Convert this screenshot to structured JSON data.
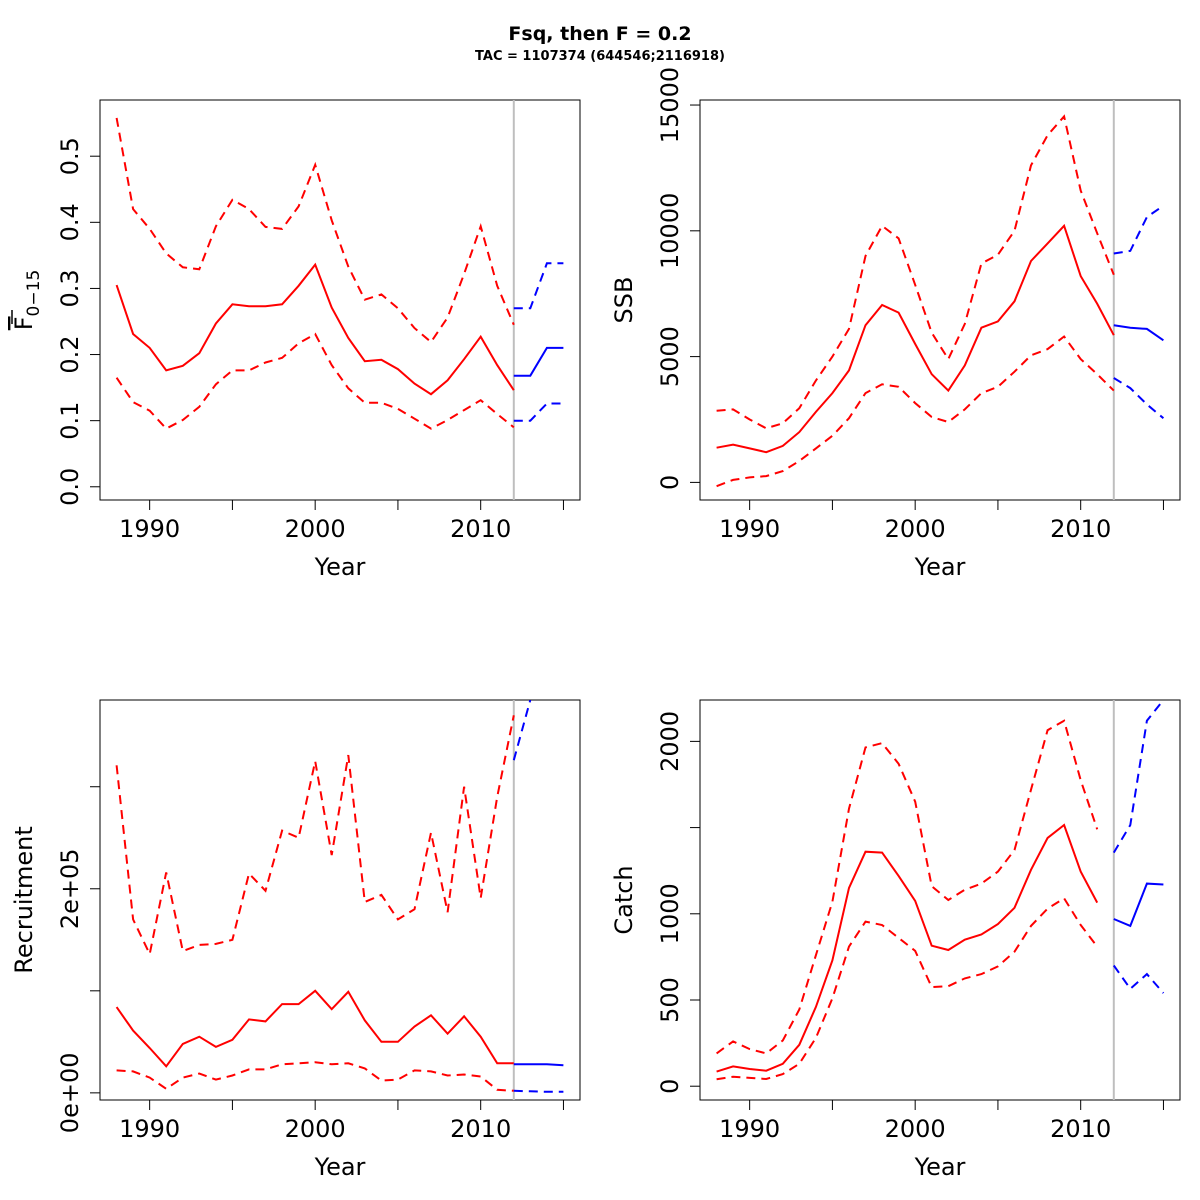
{
  "title": "Fsq, then F = 0.2",
  "subtitle": "TAC = 1107374 (644546;2116918)",
  "colors": {
    "historic": "#ff0000",
    "projection": "#0000ff",
    "divider": "#bebebe"
  },
  "chart_data": [
    {
      "type": "line",
      "id": "fbar",
      "xlabel": "Year",
      "ylabel_main": "F",
      "ylabel_sub": "0−15",
      "xlim": [
        1987,
        2016
      ],
      "ylim": [
        -0.02,
        0.585
      ],
      "xticks": [
        1990,
        2000,
        2010
      ],
      "xtick_labels": [
        "1990",
        "2000",
        "2010"
      ],
      "xminor": [
        1995,
        2005,
        2015
      ],
      "yticks": [
        0.0,
        0.1,
        0.2,
        0.3,
        0.4,
        0.5
      ],
      "ytick_labels": [
        "0.0",
        "0.1",
        "0.2",
        "0.3",
        "0.4",
        "0.5"
      ],
      "divider_year": 2012,
      "series": [
        {
          "role": "historic",
          "style": "solid",
          "x": [
            1988,
            1989,
            1990,
            1991,
            1992,
            1993,
            1994,
            1995,
            1996,
            1997,
            1998,
            1999,
            2000,
            2001,
            2002,
            2003,
            2004,
            2005,
            2006,
            2007,
            2008,
            2009,
            2010,
            2011,
            2012
          ],
          "y": [
            0.305,
            0.231,
            0.21,
            0.176,
            0.183,
            0.202,
            0.247,
            0.276,
            0.273,
            0.273,
            0.276,
            0.304,
            0.336,
            0.271,
            0.225,
            0.19,
            0.192,
            0.178,
            0.156,
            0.14,
            0.161,
            0.193,
            0.227,
            0.184,
            0.146
          ]
        },
        {
          "role": "historic",
          "style": "dashed",
          "x": [
            1988,
            1989,
            1990,
            1991,
            1992,
            1993,
            1994,
            1995,
            1996,
            1997,
            1998,
            1999,
            2000,
            2001,
            2002,
            2003,
            2004,
            2005,
            2006,
            2007,
            2008,
            2009,
            2010,
            2011,
            2012
          ],
          "y": [
            0.558,
            0.42,
            0.39,
            0.353,
            0.332,
            0.329,
            0.394,
            0.434,
            0.42,
            0.393,
            0.39,
            0.424,
            0.487,
            0.403,
            0.333,
            0.283,
            0.291,
            0.27,
            0.24,
            0.219,
            0.256,
            0.322,
            0.394,
            0.304,
            0.245
          ]
        },
        {
          "role": "historic",
          "style": "dashed",
          "x": [
            1988,
            1989,
            1990,
            1991,
            1992,
            1993,
            1994,
            1995,
            1996,
            1997,
            1998,
            1999,
            2000,
            2001,
            2002,
            2003,
            2004,
            2005,
            2006,
            2007,
            2008,
            2009,
            2010,
            2011,
            2012
          ],
          "y": [
            0.165,
            0.128,
            0.115,
            0.088,
            0.101,
            0.121,
            0.155,
            0.176,
            0.176,
            0.188,
            0.195,
            0.217,
            0.231,
            0.184,
            0.149,
            0.127,
            0.127,
            0.118,
            0.103,
            0.088,
            0.101,
            0.116,
            0.131,
            0.11,
            0.09
          ]
        },
        {
          "role": "projection",
          "style": "solid",
          "x": [
            2012,
            2013,
            2014,
            2015
          ],
          "y": [
            0.168,
            0.168,
            0.21,
            0.21
          ]
        },
        {
          "role": "projection",
          "style": "dashed",
          "x": [
            2012,
            2013,
            2014,
            2015
          ],
          "y": [
            0.27,
            0.27,
            0.338,
            0.338
          ]
        },
        {
          "role": "projection",
          "style": "dashed",
          "x": [
            2012,
            2013,
            2014,
            2015
          ],
          "y": [
            0.1,
            0.1,
            0.126,
            0.126
          ]
        }
      ]
    },
    {
      "type": "line",
      "id": "ssb",
      "xlabel": "Year",
      "ylabel": "SSB",
      "xlim": [
        1987,
        2016
      ],
      "ylim": [
        -700,
        15200
      ],
      "xticks": [
        1990,
        2000,
        2010
      ],
      "xtick_labels": [
        "1990",
        "2000",
        "2010"
      ],
      "xminor": [
        1995,
        2005,
        2015
      ],
      "yticks": [
        0,
        5000,
        10000,
        15000
      ],
      "ytick_labels": [
        "0",
        "5000",
        "10000",
        "15000"
      ],
      "divider_year": 2012,
      "series": [
        {
          "role": "historic",
          "style": "solid",
          "x": [
            1988,
            1989,
            1990,
            1991,
            1992,
            1993,
            1994,
            1995,
            1996,
            1997,
            1998,
            1999,
            2000,
            2001,
            2002,
            2003,
            2004,
            2005,
            2006,
            2007,
            2008,
            2009,
            2010,
            2011,
            2012
          ],
          "y": [
            1380,
            1500,
            1350,
            1200,
            1450,
            2000,
            2800,
            3550,
            4450,
            6250,
            7050,
            6750,
            5500,
            4300,
            3650,
            4650,
            6150,
            6400,
            7200,
            8800,
            9500,
            10200,
            8200,
            7100,
            5850
          ]
        },
        {
          "role": "historic",
          "style": "dashed",
          "x": [
            1988,
            1989,
            1990,
            1991,
            1992,
            1993,
            1994,
            1995,
            1996,
            1997,
            1998,
            1999,
            2000,
            2001,
            2002,
            2003,
            2004,
            2005,
            2006,
            2007,
            2008,
            2009,
            2010,
            2011,
            2012
          ],
          "y": [
            2850,
            2900,
            2500,
            2150,
            2350,
            2950,
            4050,
            5000,
            6100,
            9000,
            10200,
            9700,
            7850,
            5950,
            4900,
            6300,
            8700,
            9050,
            10000,
            12600,
            13800,
            14550,
            11600,
            9900,
            8250
          ]
        },
        {
          "role": "historic",
          "style": "dashed",
          "x": [
            1988,
            1989,
            1990,
            1991,
            1992,
            1993,
            1994,
            1995,
            1996,
            1997,
            1998,
            1999,
            2000,
            2001,
            2002,
            2003,
            2004,
            2005,
            2006,
            2007,
            2008,
            2009,
            2010,
            2011,
            2012
          ],
          "y": [
            -150,
            100,
            200,
            250,
            450,
            850,
            1350,
            1850,
            2550,
            3550,
            3900,
            3800,
            3150,
            2600,
            2400,
            2900,
            3550,
            3800,
            4400,
            5050,
            5300,
            5800,
            4900,
            4300,
            3650
          ]
        },
        {
          "role": "projection",
          "style": "solid",
          "x": [
            2012,
            2013,
            2014,
            2015
          ],
          "y": [
            6250,
            6150,
            6100,
            5650
          ]
        },
        {
          "role": "projection",
          "style": "dashed",
          "x": [
            2012,
            2013,
            2014,
            2015
          ],
          "y": [
            9100,
            9200,
            10550,
            11000
          ]
        },
        {
          "role": "projection",
          "style": "dashed",
          "x": [
            2012,
            2013,
            2014,
            2015
          ],
          "y": [
            4150,
            3750,
            3100,
            2550
          ]
        }
      ]
    },
    {
      "type": "line",
      "id": "recruitment",
      "xlabel": "Year",
      "ylabel": "Recruitment",
      "xlim": [
        1987,
        2016
      ],
      "ylim": [
        -7000,
        385000
      ],
      "xticks": [
        1990,
        2000,
        2010
      ],
      "xtick_labels": [
        "1990",
        "2000",
        "2010"
      ],
      "xminor": [
        1995,
        2005,
        2015
      ],
      "yticks": [
        0,
        100000,
        200000,
        300000
      ],
      "ytick_labels": [
        "0e+00",
        "",
        "2e+05",
        ""
      ],
      "divider_year": 2012,
      "series": [
        {
          "role": "historic",
          "style": "solid",
          "x": [
            1988,
            1989,
            1990,
            1991,
            1992,
            1993,
            1994,
            1995,
            1996,
            1997,
            1998,
            1999,
            2000,
            2001,
            2002,
            2003,
            2004,
            2005,
            2006,
            2007,
            2008,
            2009,
            2010,
            2011,
            2012
          ],
          "y": [
            84000,
            61000,
            44000,
            26000,
            48000,
            55000,
            45000,
            52000,
            72000,
            70000,
            87000,
            87000,
            100000,
            82000,
            99000,
            71000,
            50000,
            50000,
            65000,
            76000,
            58000,
            75000,
            55000,
            29000,
            29000
          ]
        },
        {
          "role": "historic",
          "style": "dashed",
          "x": [
            1988,
            1989,
            1990,
            1991,
            1992,
            1993,
            1994,
            1995,
            1996,
            1997,
            1998,
            1999,
            2000,
            2001,
            2002,
            2003,
            2004,
            2005,
            2006,
            2007,
            2008,
            2009,
            2010,
            2011,
            2012
          ],
          "y": [
            321000,
            170000,
            136000,
            216000,
            139000,
            145000,
            146000,
            150000,
            215000,
            198000,
            257000,
            250000,
            325000,
            233000,
            331000,
            187000,
            194000,
            170000,
            180000,
            255000,
            177000,
            300000,
            191000,
            290000,
            370000
          ]
        },
        {
          "role": "historic",
          "style": "dashed",
          "x": [
            1988,
            1989,
            1990,
            1991,
            1992,
            1993,
            1994,
            1995,
            1996,
            1997,
            1998,
            1999,
            2000,
            2001,
            2002,
            2003,
            2004,
            2005,
            2006,
            2007,
            2008,
            2009,
            2010,
            2011,
            2012
          ],
          "y": [
            22000,
            21000,
            15000,
            4000,
            15000,
            19000,
            13000,
            17000,
            23000,
            23000,
            28000,
            29000,
            30000,
            28000,
            29000,
            24000,
            12000,
            13000,
            22000,
            21000,
            17000,
            18000,
            16000,
            3000,
            2000
          ]
        },
        {
          "role": "projection",
          "style": "solid",
          "x": [
            2012,
            2013,
            2014,
            2015
          ],
          "y": [
            28000,
            28000,
            28000,
            27000
          ]
        },
        {
          "role": "projection",
          "style": "dashed",
          "x": [
            2012,
            2013
          ],
          "y": [
            326000,
            385000
          ]
        },
        {
          "role": "projection",
          "style": "dashed",
          "x": [
            2012,
            2013,
            2014,
            2015
          ],
          "y": [
            2000,
            1500,
            1000,
            1000
          ]
        }
      ]
    },
    {
      "type": "line",
      "id": "catch",
      "xlabel": "Year",
      "ylabel": "Catch",
      "xlim": [
        1987,
        2016
      ],
      "ylim": [
        -80,
        2240
      ],
      "xticks": [
        1990,
        2000,
        2010
      ],
      "xtick_labels": [
        "1990",
        "2000",
        "2010"
      ],
      "xminor": [
        1995,
        2005,
        2015
      ],
      "yticks": [
        0,
        500,
        1000,
        1500,
        2000
      ],
      "ytick_labels": [
        "0",
        "500",
        "1000",
        "",
        "2000"
      ],
      "divider_year": 2012,
      "series": [
        {
          "role": "historic",
          "style": "solid",
          "x": [
            1988,
            1989,
            1990,
            1991,
            1992,
            1993,
            1994,
            1995,
            1996,
            1997,
            1998,
            1999,
            2000,
            2001,
            2002,
            2003,
            2004,
            2005,
            2006,
            2007,
            2008,
            2009,
            2010,
            2011
          ],
          "y": [
            85,
            115,
            100,
            90,
            130,
            240,
            460,
            730,
            1150,
            1360,
            1355,
            1220,
            1075,
            815,
            790,
            850,
            880,
            940,
            1035,
            1255,
            1440,
            1515,
            1245,
            1065
          ]
        },
        {
          "role": "historic",
          "style": "dashed",
          "x": [
            1988,
            1989,
            1990,
            1991,
            1992,
            1993,
            1994,
            1995,
            1996,
            1997,
            1998,
            1999,
            2000,
            2001,
            2002,
            2003,
            2004,
            2005,
            2006,
            2007,
            2008,
            2009,
            2010,
            2011
          ],
          "y": [
            190,
            260,
            215,
            190,
            265,
            445,
            760,
            1070,
            1610,
            1965,
            1990,
            1870,
            1650,
            1160,
            1080,
            1140,
            1175,
            1245,
            1370,
            1720,
            2065,
            2120,
            1775,
            1490
          ]
        },
        {
          "role": "historic",
          "style": "dashed",
          "x": [
            1988,
            1989,
            1990,
            1991,
            1992,
            1993,
            1994,
            1995,
            1996,
            1997,
            1998,
            1999,
            2000,
            2001,
            2002,
            2003,
            2004,
            2005,
            2006,
            2007,
            2008,
            2009,
            2010,
            2011
          ],
          "y": [
            40,
            55,
            48,
            42,
            70,
            130,
            280,
            510,
            810,
            955,
            935,
            860,
            785,
            575,
            580,
            625,
            650,
            695,
            780,
            930,
            1030,
            1090,
            935,
            810
          ]
        },
        {
          "role": "projection",
          "style": "solid",
          "x": [
            2012,
            2013,
            2014,
            2015
          ],
          "y": [
            970,
            930,
            1175,
            1170
          ]
        },
        {
          "role": "projection",
          "style": "dashed",
          "x": [
            2012,
            2013,
            2014,
            2015
          ],
          "y": [
            1355,
            1515,
            2120,
            2240
          ]
        },
        {
          "role": "projection",
          "style": "dashed",
          "x": [
            2012,
            2013,
            2014,
            2015
          ],
          "y": [
            700,
            565,
            650,
            540
          ]
        }
      ]
    }
  ]
}
